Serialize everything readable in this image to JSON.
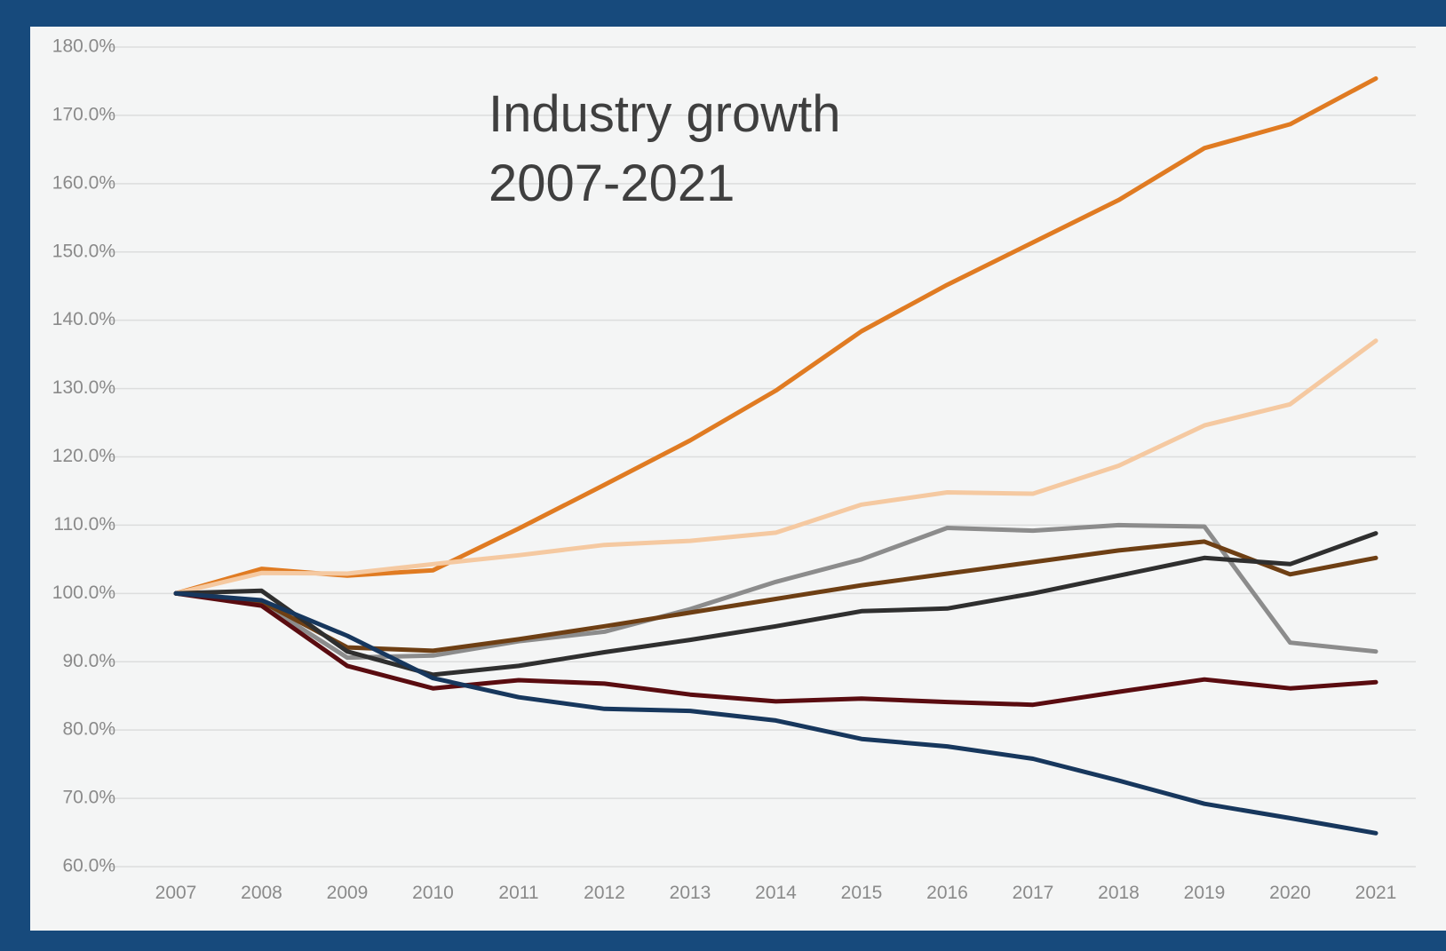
{
  "chart_data": {
    "type": "line",
    "title_lines": [
      "Industry growth",
      "2007-2021"
    ],
    "xlabel": "",
    "ylabel": "",
    "ylim": [
      60,
      180
    ],
    "y_ticks": [
      "60.0%",
      "70.0%",
      "80.0%",
      "90.0%",
      "100.0%",
      "110.0%",
      "120.0%",
      "130.0%",
      "140.0%",
      "150.0%",
      "160.0%",
      "170.0%",
      "180.0%"
    ],
    "y_tick_values": [
      60,
      70,
      80,
      90,
      100,
      110,
      120,
      130,
      140,
      150,
      160,
      170,
      180
    ],
    "categories": [
      "2007",
      "2008",
      "2009",
      "2010",
      "2011",
      "2012",
      "2013",
      "2014",
      "2015",
      "2016",
      "2017",
      "2018",
      "2019",
      "2020",
      "2021"
    ],
    "grid": true,
    "legend": "none",
    "series": [
      {
        "color": "#e07b22",
        "values": [
          100.0,
          103.6,
          102.6,
          103.4,
          109.5,
          115.9,
          122.4,
          129.7,
          138.4,
          145.2,
          151.4,
          157.6,
          165.2,
          168.7,
          175.4
        ]
      },
      {
        "color": "#f5c9a1",
        "values": [
          100.0,
          103.0,
          102.9,
          104.3,
          105.6,
          107.1,
          107.7,
          108.9,
          113.0,
          114.8,
          114.6,
          118.7,
          124.6,
          127.7,
          137.0
        ]
      },
      {
        "color": "#8c8c8c",
        "values": [
          100.0,
          98.6,
          90.6,
          90.9,
          93.0,
          94.4,
          97.7,
          101.7,
          105.0,
          109.6,
          109.2,
          110.0,
          109.8,
          92.8,
          91.5
        ]
      },
      {
        "color": "#6e3f14",
        "values": [
          100.0,
          98.8,
          92.1,
          91.6,
          93.3,
          95.2,
          97.2,
          99.2,
          101.2,
          102.9,
          104.6,
          106.3,
          107.6,
          102.8,
          105.2
        ]
      },
      {
        "color": "#2f2f2f",
        "values": [
          100.0,
          100.4,
          91.5,
          88.1,
          89.4,
          91.4,
          93.2,
          95.2,
          97.4,
          97.8,
          100.0,
          102.6,
          105.2,
          104.3,
          108.8
        ]
      },
      {
        "color": "#5a0c10",
        "values": [
          100.0,
          98.2,
          89.4,
          86.1,
          87.3,
          86.8,
          85.2,
          84.2,
          84.6,
          84.1,
          83.7,
          85.6,
          87.4,
          86.1,
          87.0
        ]
      },
      {
        "color": "#17375d",
        "values": [
          100.0,
          99.0,
          93.8,
          87.6,
          84.8,
          83.1,
          82.8,
          81.4,
          78.7,
          77.6,
          75.8,
          72.6,
          69.2,
          67.1,
          64.9
        ]
      }
    ]
  }
}
